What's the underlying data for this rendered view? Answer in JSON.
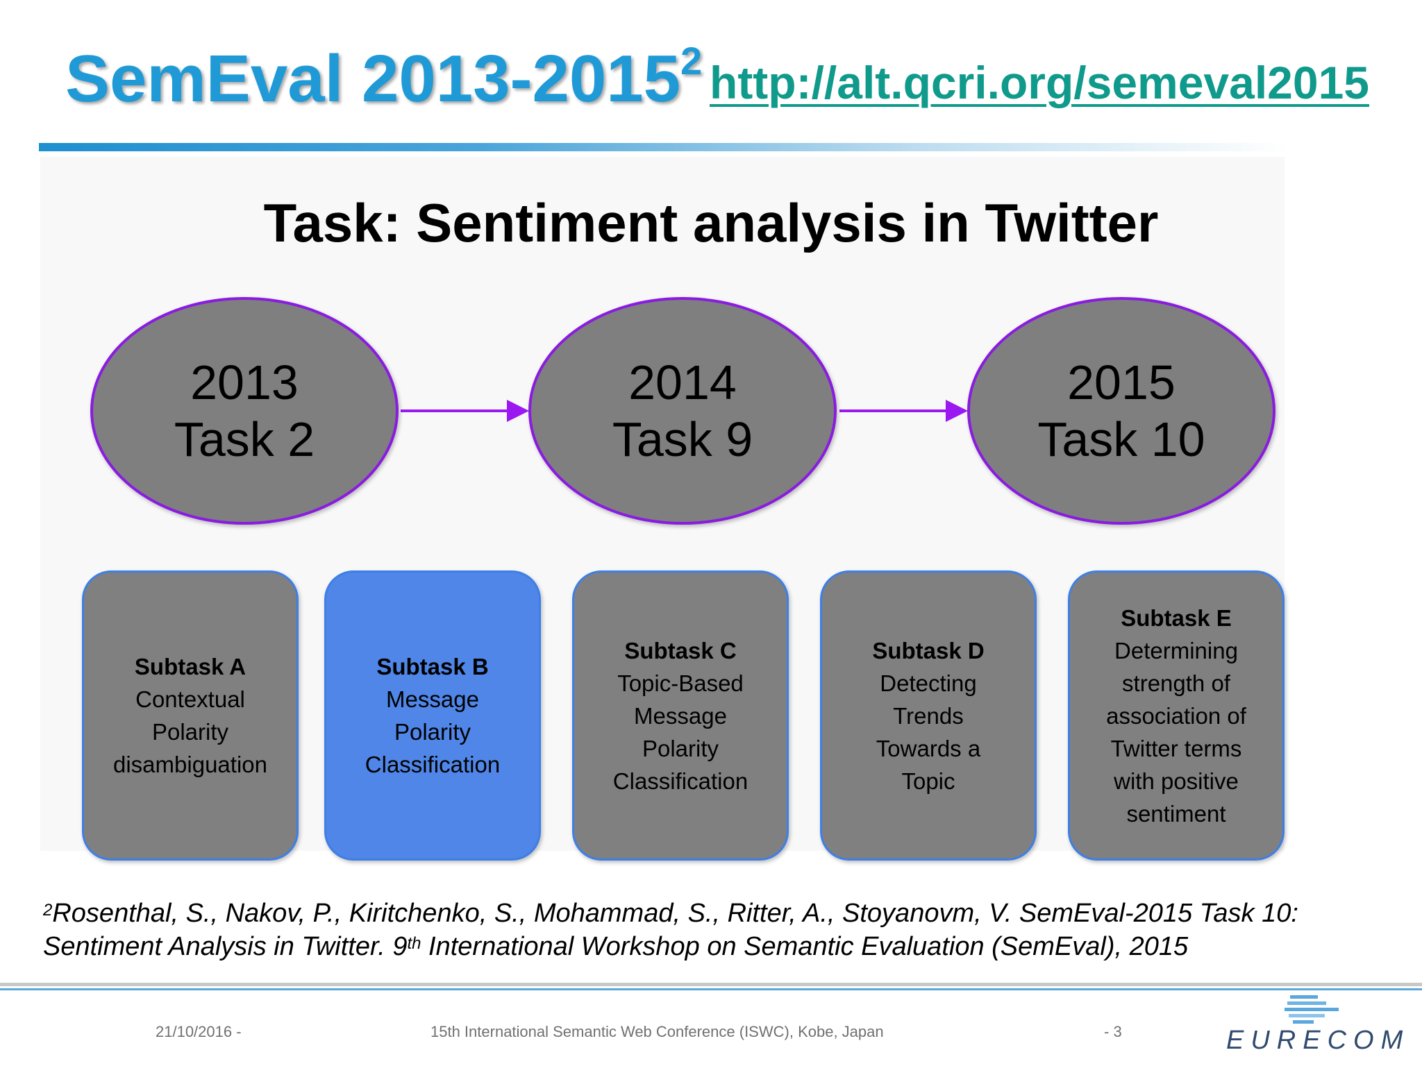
{
  "slide": {
    "title": "SemEval 2013-2015",
    "title_sup": "2",
    "url": "http://alt.qcri.org/semeval2015",
    "heading": "Task: Sentiment analysis in Twitter"
  },
  "diagram": {
    "stages": [
      {
        "year": "2013",
        "task": "Task 2"
      },
      {
        "year": "2014",
        "task": "Task 9"
      },
      {
        "year": "2015",
        "task": "Task 10"
      }
    ],
    "subtasks": [
      {
        "title": "Subtask A",
        "lines": [
          "Contextual",
          "Polarity",
          "disambiguation"
        ],
        "highlighted": false
      },
      {
        "title": "Subtask B",
        "lines": [
          "Message",
          "Polarity",
          "Classification"
        ],
        "highlighted": true
      },
      {
        "title": "Subtask C",
        "lines": [
          "Topic-Based",
          "Message",
          "Polarity",
          "Classification"
        ],
        "highlighted": false
      },
      {
        "title": "Subtask D",
        "lines": [
          "Detecting",
          "Trends",
          "Towards a",
          "Topic"
        ],
        "highlighted": false
      },
      {
        "title": "Subtask E",
        "lines": [
          "Determining",
          "strength of",
          "association of",
          "Twitter terms",
          "with positive",
          "sentiment"
        ],
        "highlighted": false
      }
    ],
    "colors": {
      "oval_fill": "#7f7f7f",
      "oval_border": "#8a1be0",
      "arrow": "#9b19f0",
      "box_fill": "#808080",
      "box_highlight": "#4f86e8",
      "box_border": "#3d7fe6"
    }
  },
  "footnote": {
    "sup": "2",
    "line1": "Rosenthal, S., Nakov, P., Kiritchenko, S., Mohammad, S., Ritter, A., Stoyanovm, V. SemEval-2015 Task 10:",
    "line2_a": "Sentiment Analysis in Twitter. 9",
    "line2_sup": "th",
    "line2_b": " International Workshop on Semantic Evaluation (SemEval), 2015"
  },
  "footer": {
    "date": "21/10/2016 -",
    "conference": "15th International Semantic Web Conference (ISWC), Kobe, Japan",
    "page": "- 3",
    "logo_text": "EURECOM"
  }
}
